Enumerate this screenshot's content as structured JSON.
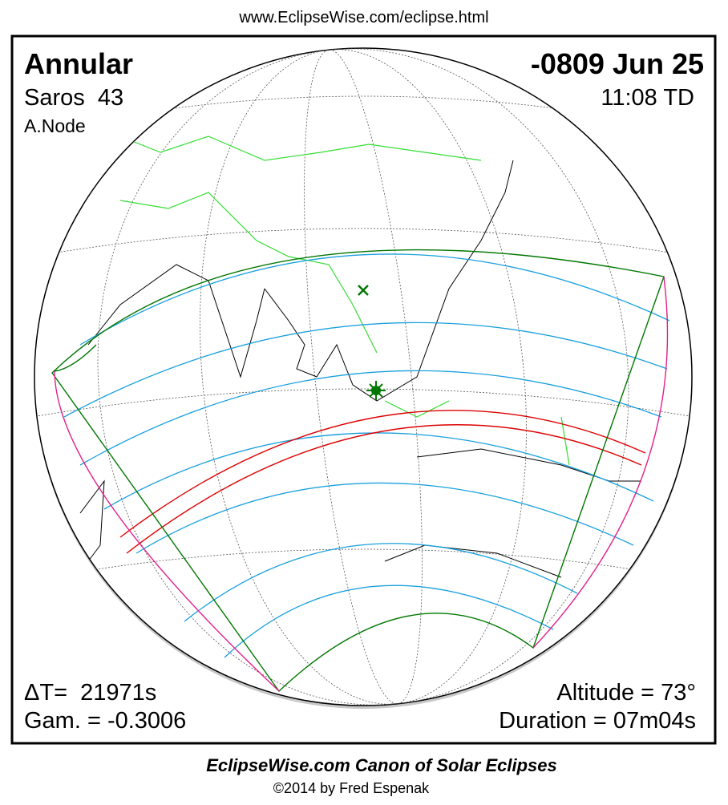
{
  "header": {
    "url": "www.EclipseWise.com/eclipse.html"
  },
  "eclipse": {
    "type": "Annular",
    "date": "-0809 Jun 25",
    "saros": "Saros  43",
    "time": "11:08 TD",
    "node": "A.Node",
    "delta_t": "ΔT=  21971s",
    "altitude": "Altitude = 73°",
    "gamma": "Gam. = -0.3006",
    "duration": "Duration = 07m04s"
  },
  "footer": {
    "title": "EclipseWise.com Canon of Solar Eclipses",
    "credit": "©2014 by Fred Espenak"
  }
}
